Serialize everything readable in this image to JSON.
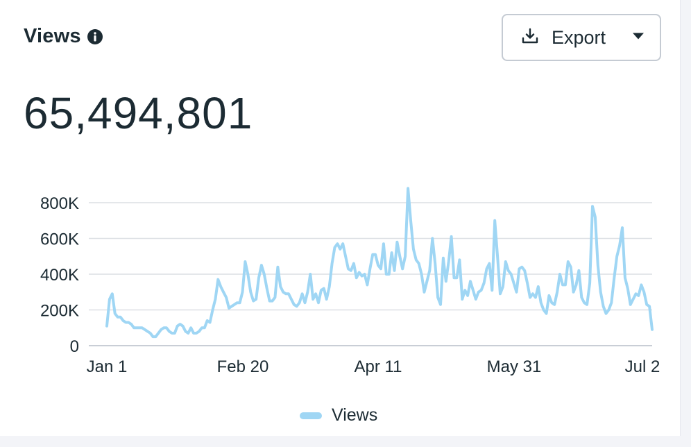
{
  "header": {
    "title": "Views",
    "info_icon": "info-circle-icon",
    "export_label": "Export",
    "export_icon": "download-icon",
    "export_caret_icon": "caret-down-icon"
  },
  "summary": {
    "total": "65,494,801"
  },
  "colors": {
    "line": "#9fd6f4",
    "text": "#1c2b33",
    "grid": "#dcdfe4"
  },
  "chart_data": {
    "type": "line",
    "xlabel": "",
    "ylabel": "",
    "x_ticks": [
      "Jan 1",
      "Feb 20",
      "Apr 11",
      "May 31",
      "Jul 2"
    ],
    "y_ticks": [
      "0",
      "200K",
      "400K",
      "600K",
      "800K"
    ],
    "ylim": [
      0,
      800000
    ],
    "grid": true,
    "legend_position": "bottom",
    "series": [
      {
        "name": "Views",
        "values": [
          110000,
          260000,
          290000,
          180000,
          160000,
          160000,
          140000,
          130000,
          130000,
          120000,
          100000,
          100000,
          100000,
          100000,
          90000,
          80000,
          70000,
          50000,
          50000,
          70000,
          90000,
          100000,
          100000,
          80000,
          70000,
          70000,
          110000,
          120000,
          110000,
          80000,
          70000,
          100000,
          70000,
          70000,
          80000,
          100000,
          100000,
          140000,
          130000,
          200000,
          260000,
          370000,
          330000,
          300000,
          270000,
          210000,
          220000,
          230000,
          240000,
          240000,
          300000,
          470000,
          400000,
          300000,
          250000,
          260000,
          380000,
          450000,
          400000,
          320000,
          250000,
          250000,
          270000,
          440000,
          330000,
          300000,
          290000,
          290000,
          260000,
          230000,
          220000,
          240000,
          290000,
          240000,
          300000,
          400000,
          260000,
          290000,
          240000,
          310000,
          320000,
          260000,
          330000,
          460000,
          550000,
          570000,
          540000,
          570000,
          500000,
          430000,
          420000,
          460000,
          380000,
          410000,
          390000,
          400000,
          340000,
          430000,
          510000,
          510000,
          450000,
          430000,
          570000,
          400000,
          400000,
          520000,
          420000,
          580000,
          500000,
          430000,
          500000,
          880000,
          700000,
          540000,
          480000,
          460000,
          400000,
          300000,
          360000,
          420000,
          600000,
          460000,
          270000,
          230000,
          490000,
          360000,
          470000,
          610000,
          380000,
          380000,
          480000,
          260000,
          310000,
          280000,
          360000,
          310000,
          260000,
          300000,
          310000,
          350000,
          430000,
          460000,
          310000,
          700000,
          500000,
          290000,
          330000,
          470000,
          420000,
          400000,
          350000,
          300000,
          430000,
          440000,
          420000,
          350000,
          270000,
          290000,
          270000,
          330000,
          240000,
          200000,
          180000,
          280000,
          240000,
          230000,
          300000,
          400000,
          340000,
          340000,
          470000,
          440000,
          300000,
          340000,
          420000,
          270000,
          240000,
          230000,
          350000,
          780000,
          720000,
          450000,
          300000,
          220000,
          180000,
          200000,
          240000,
          380000,
          500000,
          560000,
          660000,
          380000,
          320000,
          230000,
          260000,
          290000,
          280000,
          340000,
          300000,
          230000,
          220000,
          90000
        ]
      }
    ]
  }
}
